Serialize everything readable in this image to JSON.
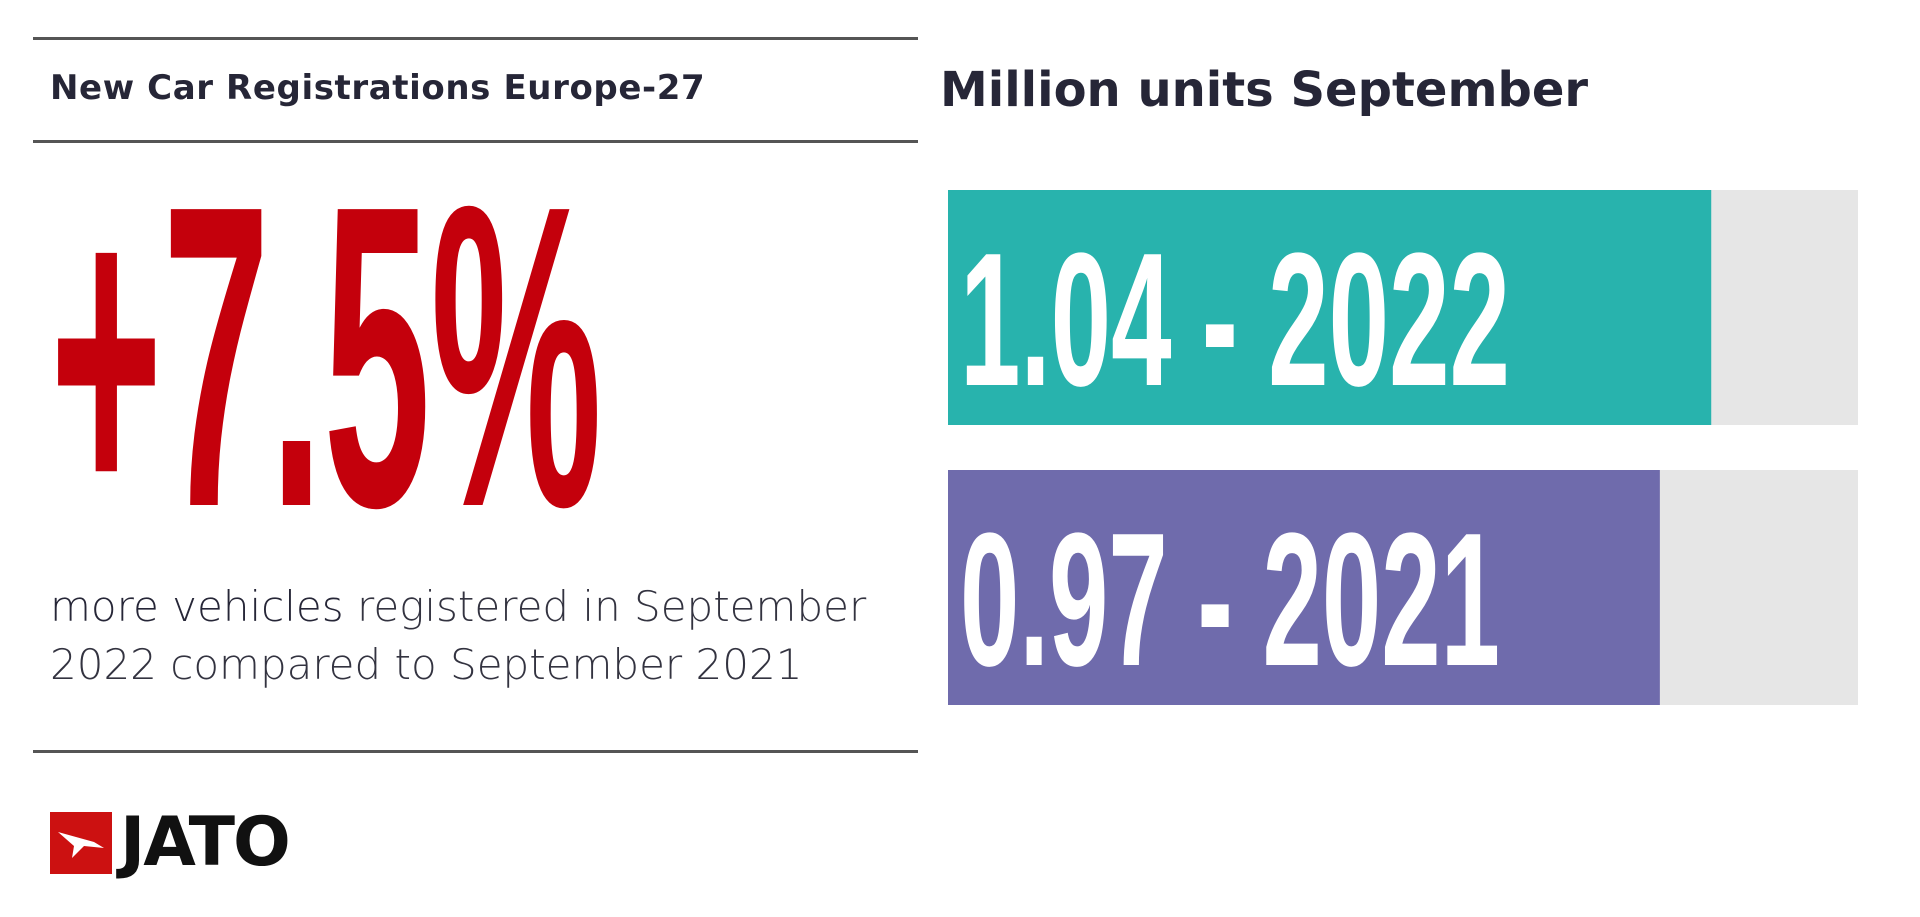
{
  "left_panel": {
    "title": "New Car Registrations Europe-27",
    "headline_change": "+7.5%",
    "caption_lead": "more vehicles",
    "caption_rest": " registered in September",
    "caption_line2": "2022 compared to September 2021"
  },
  "chart_data": {
    "type": "bar",
    "title": "Million units September",
    "categories": [
      "2022",
      "2021"
    ],
    "values": [
      1.04,
      0.97
    ],
    "labels": [
      "1.04 - 2022",
      "0.97 - 2021"
    ],
    "colors": [
      "#28b3ad",
      "#6f6bac"
    ],
    "track_color": "#e6e6e6",
    "xlim": [
      0,
      1.24
    ],
    "xlabel": "",
    "ylabel": "",
    "grid": false,
    "legend": "none"
  },
  "colors": {
    "headline_red": "#c4000c",
    "text_dark": "#262637",
    "rule": "#555555",
    "logo_red": "#cc1111"
  },
  "logo": {
    "text": "JATO",
    "icon": "jato-arrow-icon"
  }
}
